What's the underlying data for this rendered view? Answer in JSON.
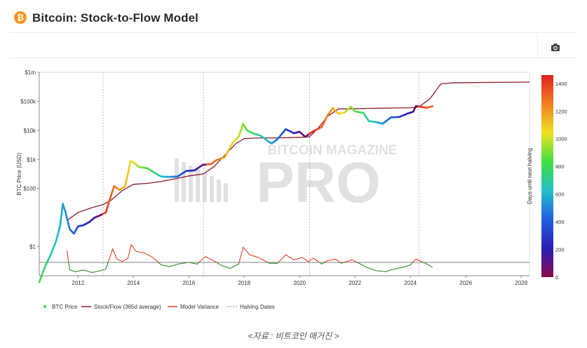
{
  "header": {
    "title": "Bitcoin: Stock-to-Flow Model",
    "icon": "bitcoin-icon",
    "icon_glyph": "₿",
    "camera_icon": "camera-icon"
  },
  "caption": "<자료 : 비트코인 매거진 >",
  "watermark": {
    "line1": "BITCOIN MAGAZINE",
    "line2": "PRO"
  },
  "chart_data": {
    "type": "line",
    "title": "Bitcoin: Stock-to-Flow Model",
    "ylabel": "BTC Price (USD)",
    "y2label": "Days until next halving",
    "yscale": "log",
    "ylim": [
      0.1,
      1000000
    ],
    "xlim": [
      2010.6,
      2028.3
    ],
    "y_ticks": [
      {
        "value": 1000000,
        "label": "$1m"
      },
      {
        "value": 100000,
        "label": "$100k"
      },
      {
        "value": 10000,
        "label": "$10k"
      },
      {
        "value": 1000,
        "label": "$1k"
      },
      {
        "value": 100,
        "label": "$100"
      },
      {
        "value": 1,
        "label": "$1"
      }
    ],
    "x_ticks": [
      "2012",
      "2014",
      "2016",
      "2018",
      "2020",
      "2022",
      "2024",
      "2026",
      "2028"
    ],
    "halving_dates": [
      2012.9,
      2016.53,
      2020.36,
      2024.3
    ],
    "colorbar": {
      "min": 0,
      "max": 1460,
      "ticks": [
        "0",
        "200",
        "400",
        "600",
        "800",
        "1000",
        "1200",
        "1400"
      ],
      "colors": [
        "#8b0a50",
        "#2a1fb5",
        "#1f5fe0",
        "#20c0c8",
        "#40e040",
        "#f0e020",
        "#f08020",
        "#e02020"
      ]
    },
    "legend": {
      "placement": "bottom",
      "entries": [
        "BTC Price",
        "Stock/Flow (365d average)",
        "Model Variance",
        "Halving Dates"
      ]
    },
    "series": [
      {
        "name": "BTC Price",
        "x": [
          2010.6,
          2010.8,
          2011.0,
          2011.2,
          2011.35,
          2011.45,
          2011.55,
          2011.7,
          2011.85,
          2012.0,
          2012.2,
          2012.4,
          2012.6,
          2012.8,
          2013.0,
          2013.2,
          2013.3,
          2013.5,
          2013.7,
          2013.9,
          2014.0,
          2014.2,
          2014.5,
          2014.8,
          2015.0,
          2015.3,
          2015.6,
          2015.9,
          2016.2,
          2016.5,
          2016.8,
          2017.0,
          2017.3,
          2017.6,
          2017.8,
          2017.96,
          2018.1,
          2018.3,
          2018.6,
          2018.9,
          2019.0,
          2019.2,
          2019.5,
          2019.8,
          2020.0,
          2020.2,
          2020.5,
          2020.8,
          2021.0,
          2021.2,
          2021.4,
          2021.6,
          2021.85,
          2022.0,
          2022.3,
          2022.5,
          2022.8,
          2023.0,
          2023.3,
          2023.6,
          2023.9,
          2024.1,
          2024.2,
          2024.4,
          2024.6,
          2024.8
        ],
        "values": [
          0.06,
          0.2,
          0.5,
          1.5,
          5,
          30,
          15,
          4,
          2.8,
          5,
          5.5,
          7,
          10,
          12,
          15,
          60,
          120,
          90,
          120,
          900,
          800,
          550,
          500,
          330,
          260,
          250,
          260,
          400,
          420,
          650,
          700,
          950,
          1200,
          4000,
          6000,
          17000,
          10000,
          8000,
          6500,
          4000,
          3600,
          5000,
          11000,
          8000,
          9000,
          6000,
          9500,
          13000,
          32000,
          58000,
          38000,
          40000,
          65000,
          45000,
          40000,
          21000,
          19000,
          17000,
          28000,
          29000,
          38000,
          44000,
          69000,
          64000,
          60000,
          68000
        ],
        "halving_days": [
          800,
          760,
          700,
          640,
          590,
          560,
          520,
          470,
          420,
          360,
          280,
          200,
          120,
          40,
          1400,
          1320,
          1280,
          1200,
          1130,
          1050,
          1010,
          940,
          830,
          720,
          650,
          540,
          430,
          320,
          200,
          90,
          1340,
          1280,
          1160,
          1050,
          980,
          920,
          860,
          790,
          680,
          570,
          530,
          460,
          350,
          240,
          130,
          60,
          1420,
          1320,
          1250,
          1170,
          1100,
          1020,
          940,
          880,
          770,
          700,
          590,
          520,
          410,
          300,
          190,
          120,
          80,
          1420,
          1350,
          1280
        ]
      },
      {
        "name": "Stock/Flow (365d average)",
        "x": [
          2011.6,
          2012.0,
          2012.5,
          2012.9,
          2013.2,
          2013.6,
          2014.0,
          2014.5,
          2015.0,
          2015.5,
          2016.0,
          2016.53,
          2016.9,
          2017.3,
          2017.7,
          2018.0,
          2018.5,
          2019.0,
          2019.5,
          2020.0,
          2020.36,
          2020.7,
          2021.0,
          2021.4,
          2021.8,
          2022.5,
          2023.0,
          2023.5,
          2024.0,
          2024.3,
          2024.7,
          2025.1,
          2025.5,
          2026.0,
          2027.0,
          2028.3
        ],
        "values": [
          8,
          15,
          22,
          28,
          40,
          85,
          140,
          150,
          175,
          215,
          270,
          320,
          560,
          1400,
          3500,
          5200,
          5500,
          5500,
          5600,
          5800,
          6000,
          13000,
          30000,
          55000,
          55000,
          57000,
          58000,
          59000,
          60000,
          64000,
          120000,
          400000,
          430000,
          440000,
          450000,
          460000
        ]
      },
      {
        "name": "Model Variance",
        "x": [
          2011.6,
          2011.7,
          2011.9,
          2012.2,
          2012.5,
          2012.8,
          2013.0,
          2013.25,
          2013.4,
          2013.6,
          2013.8,
          2013.92,
          2014.1,
          2014.4,
          2014.7,
          2015.0,
          2015.3,
          2015.6,
          2016.0,
          2016.3,
          2016.6,
          2016.9,
          2017.2,
          2017.5,
          2017.8,
          2017.96,
          2018.2,
          2018.5,
          2018.9,
          2019.2,
          2019.5,
          2019.8,
          2020.1,
          2020.3,
          2020.5,
          2020.8,
          2021.0,
          2021.3,
          2021.5,
          2021.9,
          2022.2,
          2022.5,
          2022.8,
          2023.1,
          2023.4,
          2023.7,
          2024.0,
          2024.2,
          2024.4,
          2024.6,
          2024.8
        ],
        "values": [
          1.4,
          -0.9,
          -1.1,
          -0.9,
          -1.2,
          -1.0,
          -0.8,
          1.6,
          0.4,
          0.1,
          0.5,
          2.1,
          1.3,
          1.1,
          0.6,
          -0.3,
          -0.5,
          -0.2,
          0.0,
          -0.2,
          0.7,
          0.2,
          -0.4,
          -0.7,
          -0.2,
          1.8,
          0.9,
          0.6,
          -0.1,
          -0.1,
          0.9,
          0.3,
          0.6,
          0.1,
          0.5,
          -0.2,
          0.2,
          0.4,
          -0.1,
          0.3,
          -0.2,
          -0.7,
          -1.0,
          -1.1,
          -0.8,
          -0.6,
          -0.3,
          0.4,
          0.1,
          -0.2,
          -0.6
        ]
      }
    ]
  }
}
